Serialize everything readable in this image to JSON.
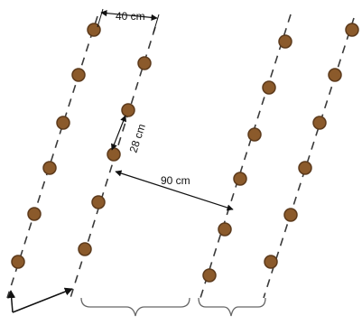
{
  "diagram": {
    "dimensions": {
      "row_spacing_in_pair": "40 cm",
      "plant_spacing_in_row": "28 cm",
      "between_pairs": "90 cm"
    },
    "colors": {
      "seed_fill": "#8B5A2B",
      "seed_stroke": "#5C3A1C",
      "row_line": "#3A3A3A",
      "arrow": "#111111",
      "brace": "#666666",
      "background": "#FFFFFF"
    },
    "rows": [
      {
        "name": "row-1",
        "plants": 6
      },
      {
        "name": "row-2",
        "plants": 6
      },
      {
        "name": "row-3",
        "plants": 7
      },
      {
        "name": "row-4",
        "plants": 7
      }
    ]
  }
}
